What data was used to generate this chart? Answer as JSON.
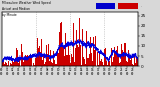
{
  "background_color": "#d8d8d8",
  "plot_background": "#ffffff",
  "bar_color": "#cc0000",
  "line_color": "#0000dd",
  "ylabel_right": [
    "0",
    "5",
    "10",
    "15",
    "20",
    "25"
  ],
  "yticks": [
    0,
    5,
    10,
    15,
    20,
    25
  ],
  "ylim": [
    0,
    27
  ],
  "n_points": 1440,
  "seed": 42,
  "vline_color": "#aaaaaa",
  "vline_positions": [
    360,
    720,
    1080
  ]
}
